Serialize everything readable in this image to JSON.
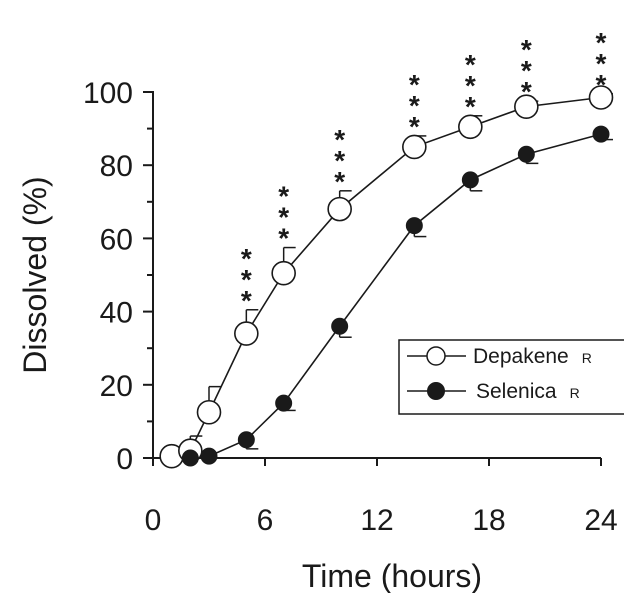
{
  "chart_data": {
    "type": "line",
    "xlabel": "Time (hours)",
    "ylabel": "Dissolved (%)",
    "xlim": [
      0,
      24
    ],
    "ylim": [
      0,
      100
    ],
    "x_ticks": [
      0,
      6,
      12,
      18,
      24
    ],
    "y_ticks": [
      0,
      20,
      40,
      60,
      80,
      100
    ],
    "grid": false,
    "legend_position": "right",
    "series": [
      {
        "name": "Depakene R",
        "marker": "open-circle",
        "x": [
          1,
          2,
          3,
          5,
          7,
          10,
          14,
          17,
          20,
          24
        ],
        "y": [
          0.5,
          2,
          12.5,
          34,
          50.5,
          68,
          85,
          90.5,
          96,
          98.5
        ],
        "error": [
          0,
          4,
          7,
          6.5,
          7,
          5,
          3,
          3,
          1.5,
          1
        ]
      },
      {
        "name": "Selenica R",
        "marker": "filled-circle",
        "x": [
          2,
          3,
          5,
          7,
          10,
          14,
          17,
          20,
          24
        ],
        "y": [
          0,
          0.5,
          5,
          15,
          36,
          63.5,
          76,
          83,
          88.5
        ],
        "error": [
          0,
          0,
          2.5,
          2,
          3,
          3,
          3,
          2.5,
          1.5
        ]
      }
    ],
    "significance": [
      {
        "x": 5,
        "label": "***"
      },
      {
        "x": 7,
        "label": "***"
      },
      {
        "x": 10,
        "label": "***"
      },
      {
        "x": 14,
        "label": "***"
      },
      {
        "x": 17,
        "label": "***"
      },
      {
        "x": 20,
        "label": "***"
      },
      {
        "x": 24,
        "label": "***"
      }
    ]
  }
}
